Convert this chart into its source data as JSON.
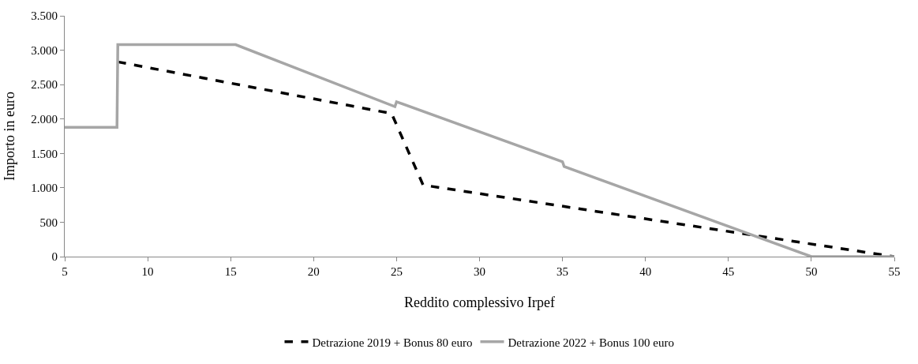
{
  "chart_data": {
    "type": "line",
    "xlabel": "Reddito complessivo Irpef",
    "ylabel": "Importo in euro",
    "xlim": [
      5,
      55
    ],
    "xticks": [
      5,
      10,
      15,
      20,
      25,
      30,
      35,
      40,
      45,
      50,
      55
    ],
    "ylim": [
      0,
      3500
    ],
    "yticks": [
      0,
      500,
      {
        "value": 1000,
        "label": "1.000"
      },
      {
        "value": 1500,
        "label": "1.500"
      },
      {
        "value": 2000,
        "label": "2.000"
      },
      {
        "value": 2500,
        "label": "2.500"
      },
      {
        "value": 3000,
        "label": "3.000"
      },
      {
        "value": 3500,
        "label": "3.500"
      }
    ],
    "legend": "bottom",
    "marker": "none",
    "series": [
      {
        "name": "Detrazione 2019 + Bonus 80 euro",
        "color": "#000000",
        "line_style": "dashed",
        "x": [
          8.2,
          24.7,
          26.6,
          55
        ],
        "values": [
          2830,
          2080,
          1040,
          0
        ]
      },
      {
        "name": "Detrazione 2022 + Bonus 100 euro",
        "color": "#a6a6a6",
        "line_style": "solid",
        "x": [
          5,
          8.15,
          8.2,
          15.3,
          24.9,
          25,
          35,
          35.1,
          50,
          55
        ],
        "values": [
          1880,
          1880,
          3080,
          3080,
          2180,
          2250,
          1380,
          1310,
          0,
          0
        ]
      }
    ]
  }
}
